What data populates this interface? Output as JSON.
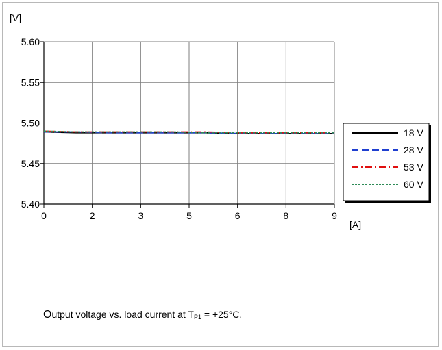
{
  "chart_data": {
    "type": "line",
    "ylabel": "[V]",
    "xlabel": "[A]",
    "ylim": [
      5.4,
      5.6
    ],
    "yticks": [
      "5.60",
      "5.55",
      "5.50",
      "5.45",
      "5.40"
    ],
    "ytick_values": [
      5.6,
      5.55,
      5.5,
      5.45,
      5.4
    ],
    "xticks": [
      "0",
      "2",
      "3",
      "5",
      "6",
      "8",
      "9"
    ],
    "grid": true,
    "legend_position": "right",
    "x": [
      0,
      1,
      2,
      3,
      4,
      5,
      6,
      7,
      8,
      9
    ],
    "series": [
      {
        "name": "18 V",
        "color": "#000000",
        "dash": "solid",
        "values": [
          5.489,
          5.488,
          5.488,
          5.488,
          5.488,
          5.488,
          5.487,
          5.487,
          5.487,
          5.487
        ]
      },
      {
        "name": "28 V",
        "color": "#1f3fd0",
        "dash": "dashed",
        "values": [
          5.489,
          5.489,
          5.488,
          5.488,
          5.488,
          5.488,
          5.487,
          5.487,
          5.487,
          5.487
        ]
      },
      {
        "name": "53 V",
        "color": "#e01010",
        "dash": "dashdot",
        "values": [
          5.49,
          5.489,
          5.489,
          5.489,
          5.489,
          5.489,
          5.488,
          5.488,
          5.488,
          5.488
        ]
      },
      {
        "name": "60 V",
        "color": "#2e8b57",
        "dash": "dotted",
        "values": [
          5.49,
          5.489,
          5.489,
          5.489,
          5.489,
          5.488,
          5.488,
          5.488,
          5.488,
          5.488
        ]
      }
    ]
  },
  "caption": {
    "lead": "O",
    "text1": "utput voltage vs. load current at T",
    "sub": "P1",
    "text2": " = +25°C."
  }
}
